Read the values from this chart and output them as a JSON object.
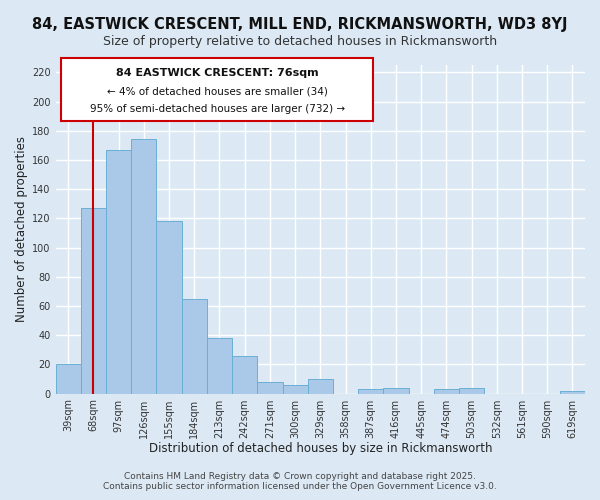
{
  "title": "84, EASTWICK CRESCENT, MILL END, RICKMANSWORTH, WD3 8YJ",
  "subtitle": "Size of property relative to detached houses in Rickmansworth",
  "xlabel": "Distribution of detached houses by size in Rickmansworth",
  "ylabel": "Number of detached properties",
  "bar_labels": [
    "39sqm",
    "68sqm",
    "97sqm",
    "126sqm",
    "155sqm",
    "184sqm",
    "213sqm",
    "242sqm",
    "271sqm",
    "300sqm",
    "329sqm",
    "358sqm",
    "387sqm",
    "416sqm",
    "445sqm",
    "474sqm",
    "503sqm",
    "532sqm",
    "561sqm",
    "590sqm",
    "619sqm"
  ],
  "bar_values": [
    20,
    127,
    167,
    174,
    118,
    65,
    38,
    26,
    8,
    6,
    10,
    0,
    3,
    4,
    0,
    3,
    4,
    0,
    0,
    0,
    2
  ],
  "bar_color": "#aac8e8",
  "bar_edge_color": "#6aafd6",
  "vline_x_index": 1,
  "vline_color": "#cc0000",
  "annotation_title": "84 EASTWICK CRESCENT: 76sqm",
  "annotation_line1": "← 4% of detached houses are smaller (34)",
  "annotation_line2": "95% of semi-detached houses are larger (732) →",
  "annotation_box_color": "#ffffff",
  "annotation_box_edge": "#cc0000",
  "ylim": [
    0,
    225
  ],
  "yticks": [
    0,
    20,
    40,
    60,
    80,
    100,
    120,
    140,
    160,
    180,
    200,
    220
  ],
  "background_color": "#dce9f5",
  "grid_color": "#ffffff",
  "footer_line1": "Contains HM Land Registry data © Crown copyright and database right 2025.",
  "footer_line2": "Contains public sector information licensed under the Open Government Licence v3.0.",
  "title_fontsize": 10.5,
  "subtitle_fontsize": 9,
  "xlabel_fontsize": 8.5,
  "ylabel_fontsize": 8.5,
  "tick_fontsize": 7,
  "footer_fontsize": 6.5
}
